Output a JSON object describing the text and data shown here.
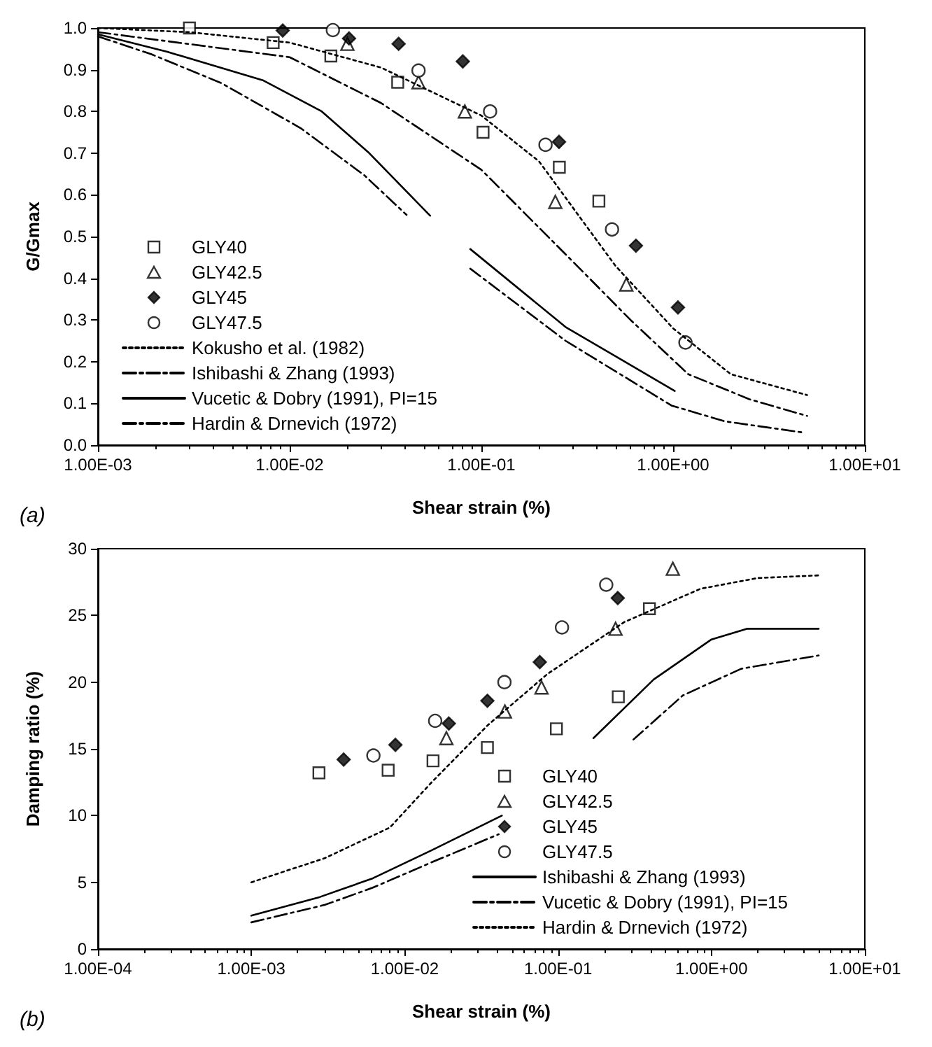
{
  "chart_data": [
    {
      "type": "scatter",
      "xlabel": "Shear strain (%)",
      "ylabel": "G/Gmax",
      "annotations": [
        "(a)"
      ],
      "log": "x",
      "grid": false,
      "legend": "bottom left",
      "xlim": [
        0.001,
        10
      ],
      "xticks": [
        {
          "value": 0.001,
          "label": "1.00E-03"
        },
        {
          "value": 0.01,
          "label": "1.00E-02"
        },
        {
          "value": 0.1,
          "label": "1.00E-01"
        },
        {
          "value": 1,
          "label": "1.00E+00"
        },
        {
          "value": 10,
          "label": "1.00E+01"
        }
      ],
      "ylim": [
        0,
        1
      ],
      "yticks": [
        {
          "value": 0,
          "label": "0.0"
        },
        0.1,
        0.2,
        0.3,
        0.4,
        0.5,
        0.6,
        0.7,
        0.8,
        0.9,
        {
          "value": 1,
          "label": "1.0"
        }
      ],
      "series": [
        {
          "name": "GLY40",
          "type": "scatter",
          "marker": "square",
          "color": "#000000",
          "x": [
            0.003,
            0.0082,
            0.0164,
            0.0366,
            0.102,
            0.255,
            0.41
          ],
          "values": [
            1.0,
            0.965,
            0.933,
            0.87,
            0.75,
            0.666,
            0.585
          ]
        },
        {
          "name": "GLY42.5",
          "type": "scatter",
          "marker": "triangle",
          "color": "#000000",
          "x": [
            0.02,
            0.047,
            0.082,
            0.243,
            0.57
          ],
          "values": [
            0.962,
            0.87,
            0.8,
            0.583,
            0.385
          ]
        },
        {
          "name": "GLY45",
          "type": "scatter",
          "marker": "diamond",
          "color": "#000000",
          "x": [
            0.0092,
            0.0204,
            0.037,
            0.08,
            0.254,
            0.64,
            1.06
          ],
          "values": [
            0.994,
            0.975,
            0.962,
            0.92,
            0.727,
            0.478,
            0.33
          ]
        },
        {
          "name": "GLY47.5",
          "type": "scatter",
          "marker": "circle",
          "color": "#000000",
          "x": [
            0.0168,
            0.047,
            0.111,
            0.216,
            0.48,
            1.16
          ],
          "values": [
            0.995,
            0.898,
            0.8,
            0.72,
            0.517,
            0.246
          ]
        },
        {
          "name": "Kokusho et al. (1982)",
          "type": "line",
          "line_style": "dotted",
          "color": "#000000",
          "x": [
            0.001,
            0.003,
            0.01,
            0.03,
            0.1,
            0.2,
            0.5,
            1,
            2,
            5
          ],
          "values": [
            1.0,
            0.99,
            0.965,
            0.905,
            0.79,
            0.68,
            0.43,
            0.28,
            0.17,
            0.12
          ]
        },
        {
          "name": "Ishibashi & Zhang (1993)",
          "type": "line",
          "line_style": "dashed",
          "color": "#000000",
          "x": [
            0.001,
            0.01,
            0.03,
            0.1,
            0.3,
            0.6,
            1.2,
            2.5,
            5
          ],
          "values": [
            0.99,
            0.93,
            0.82,
            0.66,
            0.44,
            0.3,
            0.17,
            0.11,
            0.07
          ]
        },
        {
          "name": "Vucetic & Dobry (1991), PI=15",
          "type": "line",
          "line_style": "solid",
          "color": "#000000",
          "x": [
            0.001,
            0.0023,
            0.0073,
            0.0147,
            0.026,
            0.054,
            0.07,
            0.0875,
            0.275,
            1.02
          ],
          "values": [
            0.985,
            0.943,
            0.874,
            0.8,
            0.7,
            0.55,
            null,
            0.47,
            0.283,
            0.13
          ]
        },
        {
          "name": "Hardin & Drnevich (1972)",
          "type": "line",
          "line_style": "dashed",
          "color": "#000000",
          "x": [
            0.001,
            0.0019,
            0.0044,
            0.0114,
            0.0245,
            0.0407,
            0.06,
            0.0875,
            0.275,
            0.98,
            1.86,
            4.8
          ],
          "values": [
            0.98,
            0.937,
            0.868,
            0.76,
            0.647,
            0.552,
            null,
            0.423,
            0.25,
            0.095,
            0.057,
            0.03
          ]
        }
      ]
    },
    {
      "type": "scatter",
      "xlabel": "Shear strain (%)",
      "ylabel": "Damping ratio (%)",
      "annotations": [
        "(b)"
      ],
      "log": "x",
      "grid": false,
      "legend": "bottom right",
      "xlim": [
        0.0001,
        10
      ],
      "xticks": [
        {
          "value": 0.0001,
          "label": "1.00E-04"
        },
        {
          "value": 0.001,
          "label": "1.00E-03"
        },
        {
          "value": 0.01,
          "label": "1.00E-02"
        },
        {
          "value": 0.1,
          "label": "1.00E-01"
        },
        {
          "value": 1,
          "label": "1.00E+00"
        },
        {
          "value": 10,
          "label": "1.00E+01"
        }
      ],
      "ylim": [
        0,
        30
      ],
      "yticks": [
        0,
        5,
        10,
        15,
        20,
        25,
        30
      ],
      "series": [
        {
          "name": "GLY40",
          "type": "scatter",
          "marker": "square",
          "color": "#000000",
          "x": [
            0.00276,
            0.0078,
            0.0153,
            0.0346,
            0.0975,
            0.247,
            0.394
          ],
          "values": [
            13.2,
            13.4,
            14.1,
            15.1,
            16.5,
            18.9,
            25.5
          ]
        },
        {
          "name": "GLY42.5",
          "type": "scatter",
          "marker": "triangle",
          "color": "#000000",
          "x": [
            0.0187,
            0.045,
            0.078,
            0.237,
            0.56
          ],
          "values": [
            15.8,
            17.8,
            19.6,
            24.0,
            28.5
          ]
        },
        {
          "name": "GLY45",
          "type": "scatter",
          "marker": "diamond",
          "color": "#000000",
          "x": [
            0.004,
            0.0087,
            0.0194,
            0.0346,
            0.076,
            0.245
          ],
          "values": [
            14.2,
            15.3,
            16.9,
            18.6,
            21.5,
            26.3
          ]
        },
        {
          "name": "GLY47.5",
          "type": "scatter",
          "marker": "circle",
          "color": "#000000",
          "x": [
            0.00625,
            0.0158,
            0.0447,
            0.106,
            0.206
          ],
          "values": [
            14.5,
            17.1,
            20.0,
            24.1,
            27.3
          ]
        },
        {
          "name": "Ishibashi & Zhang (1993)",
          "type": "line",
          "line_style": "solid",
          "color": "#000000",
          "x": [
            0.001,
            0.0028,
            0.0062,
            0.015,
            0.043,
            0.09,
            0.17,
            0.42,
            1,
            1.7,
            5
          ],
          "values": [
            2.5,
            3.9,
            5.3,
            7.4,
            10.0,
            null,
            15.8,
            20.2,
            23.2,
            24.0,
            24.0
          ]
        },
        {
          "name": "Vucetic & Dobry (1991), PI=15",
          "type": "line",
          "line_style": "dashed",
          "color": "#000000",
          "x": [
            0.001,
            0.003,
            0.0062,
            0.015,
            0.041,
            0.15,
            0.31,
            0.65,
            1.56,
            5
          ],
          "values": [
            2.0,
            3.3,
            4.6,
            6.5,
            8.6,
            null,
            15.7,
            19.0,
            21.0,
            22.0
          ]
        },
        {
          "name": "Hardin & Drnevich (1972)",
          "type": "line",
          "line_style": "dotted",
          "color": "#000000",
          "x": [
            0.001,
            0.003,
            0.008,
            0.015,
            0.035,
            0.085,
            0.27,
            0.85,
            2,
            5
          ],
          "values": [
            5,
            6.8,
            9.1,
            12.5,
            16.8,
            20.6,
            24.5,
            27,
            27.8,
            28
          ]
        }
      ]
    }
  ]
}
